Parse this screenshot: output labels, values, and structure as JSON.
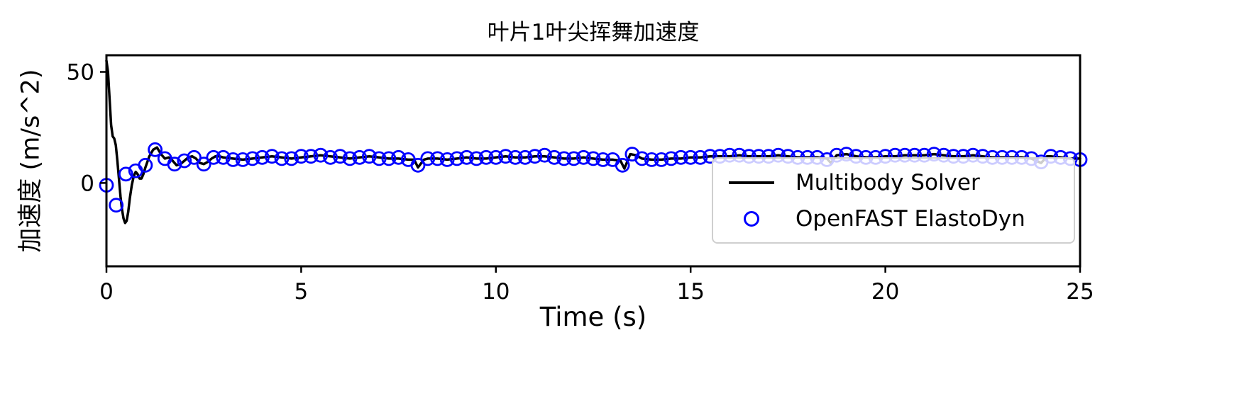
{
  "chart_data": {
    "type": "line",
    "title": "叶片1叶尖挥舞加速度",
    "xlabel": "Time (s)",
    "ylabel": "加速度 (m/s^2)",
    "xlim": [
      0,
      25
    ],
    "ylim": [
      -37.5,
      57.5
    ],
    "xticks": [
      0,
      5,
      10,
      15,
      20,
      25
    ],
    "yticks": [
      0,
      50
    ],
    "grid": false,
    "legend_position": "lower-right-inside",
    "series": [
      {
        "name": "Multibody Solver",
        "type": "line",
        "color": "#000000",
        "x": [
          0,
          0.04,
          0.08,
          0.12,
          0.16,
          0.2,
          0.24,
          0.28,
          0.32,
          0.36,
          0.4,
          0.44,
          0.48,
          0.52,
          0.56,
          0.6,
          0.65,
          0.7,
          0.75,
          0.8,
          0.85,
          0.9,
          0.95,
          1.0,
          1.1,
          1.2,
          1.3,
          1.4,
          1.5,
          1.6,
          1.7,
          1.8,
          1.9,
          2.0,
          2.1,
          2.2,
          2.3,
          2.4,
          2.5,
          2.6,
          2.7,
          2.8,
          2.9,
          3.0,
          3.25,
          3.5,
          3.75,
          4.0,
          4.25,
          4.5,
          4.75,
          5.0,
          5.25,
          5.5,
          5.75,
          6.0,
          6.25,
          6.5,
          6.75,
          7.0,
          7.25,
          7.5,
          7.75,
          7.9,
          8.0,
          8.15,
          8.25,
          8.5,
          8.75,
          9.0,
          9.25,
          9.5,
          9.75,
          10.0,
          10.25,
          10.5,
          10.75,
          11.0,
          11.25,
          11.5,
          11.75,
          12.0,
          12.25,
          12.5,
          12.75,
          13.0,
          13.2,
          13.3,
          13.45,
          13.6,
          13.75,
          14.0,
          14.25,
          14.5,
          14.75,
          15.0,
          15.25,
          15.5,
          15.75,
          16.0,
          16.25,
          16.5,
          16.75,
          17.0,
          17.25,
          17.5,
          17.75,
          18.0,
          18.25,
          18.5,
          18.6,
          18.75,
          19.0,
          19.25,
          19.5,
          19.75,
          20.0,
          20.25,
          20.5,
          20.75,
          21.0,
          21.25,
          21.5,
          21.75,
          22.0,
          22.25,
          22.5,
          22.75,
          23.0,
          23.25,
          23.5,
          23.75,
          24.0,
          24.15,
          24.25,
          24.5,
          24.75,
          25.0
        ],
        "y": [
          55,
          50,
          38,
          26,
          21,
          20,
          17,
          10,
          2,
          -6,
          -12,
          -16,
          -18,
          -17,
          -13,
          -7,
          -1,
          3,
          5,
          4,
          2,
          2,
          4,
          7,
          12,
          15,
          16,
          13,
          11,
          11.5,
          10,
          8,
          8.5,
          10,
          11.5,
          12,
          11,
          9,
          8.5,
          9.5,
          11,
          12,
          12,
          11.5,
          11,
          10.5,
          11,
          11.5,
          12,
          11.5,
          11,
          11.5,
          12,
          12.5,
          12,
          11.5,
          11,
          11.5,
          12,
          11.5,
          11,
          11,
          10.5,
          10.5,
          7,
          10.5,
          11,
          11,
          10.5,
          11,
          11.5,
          11,
          11,
          11.5,
          12,
          11.5,
          11.5,
          12,
          12,
          11.5,
          11,
          11,
          11.5,
          11,
          10.5,
          10.5,
          10,
          6.5,
          13,
          12.5,
          11,
          10.5,
          10.5,
          11,
          11,
          11.5,
          11.5,
          12,
          12,
          12,
          12.5,
          12,
          12,
          12,
          12.5,
          12,
          11.5,
          11.5,
          11.5,
          11,
          9,
          12.5,
          13,
          12,
          11.5,
          11.5,
          12,
          12,
          12.5,
          12.5,
          12.5,
          13,
          12.5,
          12,
          12,
          12.5,
          12,
          11.5,
          11.5,
          11.5,
          11.5,
          11,
          9,
          12,
          12,
          11.5,
          11,
          11
        ]
      },
      {
        "name": "OpenFAST ElastoDyn",
        "type": "scatter",
        "marker": "open-circle",
        "color": "#0000ff",
        "x": [
          0,
          0.25,
          0.5,
          0.75,
          1,
          1.25,
          1.5,
          1.75,
          2,
          2.25,
          2.5,
          2.75,
          3,
          3.25,
          3.5,
          3.75,
          4,
          4.25,
          4.5,
          4.75,
          5,
          5.25,
          5.5,
          5.75,
          6,
          6.25,
          6.5,
          6.75,
          7,
          7.25,
          7.5,
          7.75,
          8,
          8.25,
          8.5,
          8.75,
          9,
          9.25,
          9.5,
          9.75,
          10,
          10.25,
          10.5,
          10.75,
          11,
          11.25,
          11.5,
          11.75,
          12,
          12.25,
          12.5,
          12.75,
          13,
          13.25,
          13.5,
          13.75,
          14,
          14.25,
          14.5,
          14.75,
          15,
          15.25,
          15.5,
          15.75,
          16,
          16.25,
          16.5,
          16.75,
          17,
          17.25,
          17.5,
          17.75,
          18,
          18.25,
          18.5,
          18.75,
          19,
          19.25,
          19.5,
          19.75,
          20,
          20.25,
          20.5,
          20.75,
          21,
          21.25,
          21.5,
          21.75,
          22,
          22.25,
          22.5,
          22.75,
          23,
          23.25,
          23.5,
          23.75,
          24,
          24.25,
          24.5,
          24.75,
          25
        ],
        "y": [
          -1,
          -10,
          4,
          5.5,
          8,
          15,
          11,
          8.5,
          10,
          11.5,
          8.5,
          11.5,
          11.5,
          10.5,
          10.5,
          11,
          11.5,
          12,
          11,
          11,
          12,
          12,
          12.5,
          11.5,
          12,
          11,
          11.5,
          12,
          11,
          11,
          11.5,
          10.5,
          8,
          11,
          11,
          10.5,
          11,
          11.5,
          11,
          11.5,
          11.5,
          12,
          11.5,
          11.5,
          12,
          12.5,
          11.5,
          11,
          11,
          11.5,
          11,
          10.5,
          10.5,
          8,
          13,
          11,
          10.5,
          10.5,
          11,
          11.5,
          11.5,
          11.5,
          12,
          12,
          12.5,
          12.5,
          12,
          12,
          12,
          12.5,
          12,
          11.5,
          11.5,
          11.5,
          10.5,
          12.5,
          13,
          12,
          11.5,
          11.5,
          12,
          12.5,
          12.5,
          12.5,
          12.5,
          13,
          12.5,
          12,
          12,
          12.5,
          12,
          11.5,
          11.5,
          11.5,
          11.5,
          11,
          9.5,
          12,
          11.5,
          11,
          10.5
        ]
      }
    ]
  }
}
